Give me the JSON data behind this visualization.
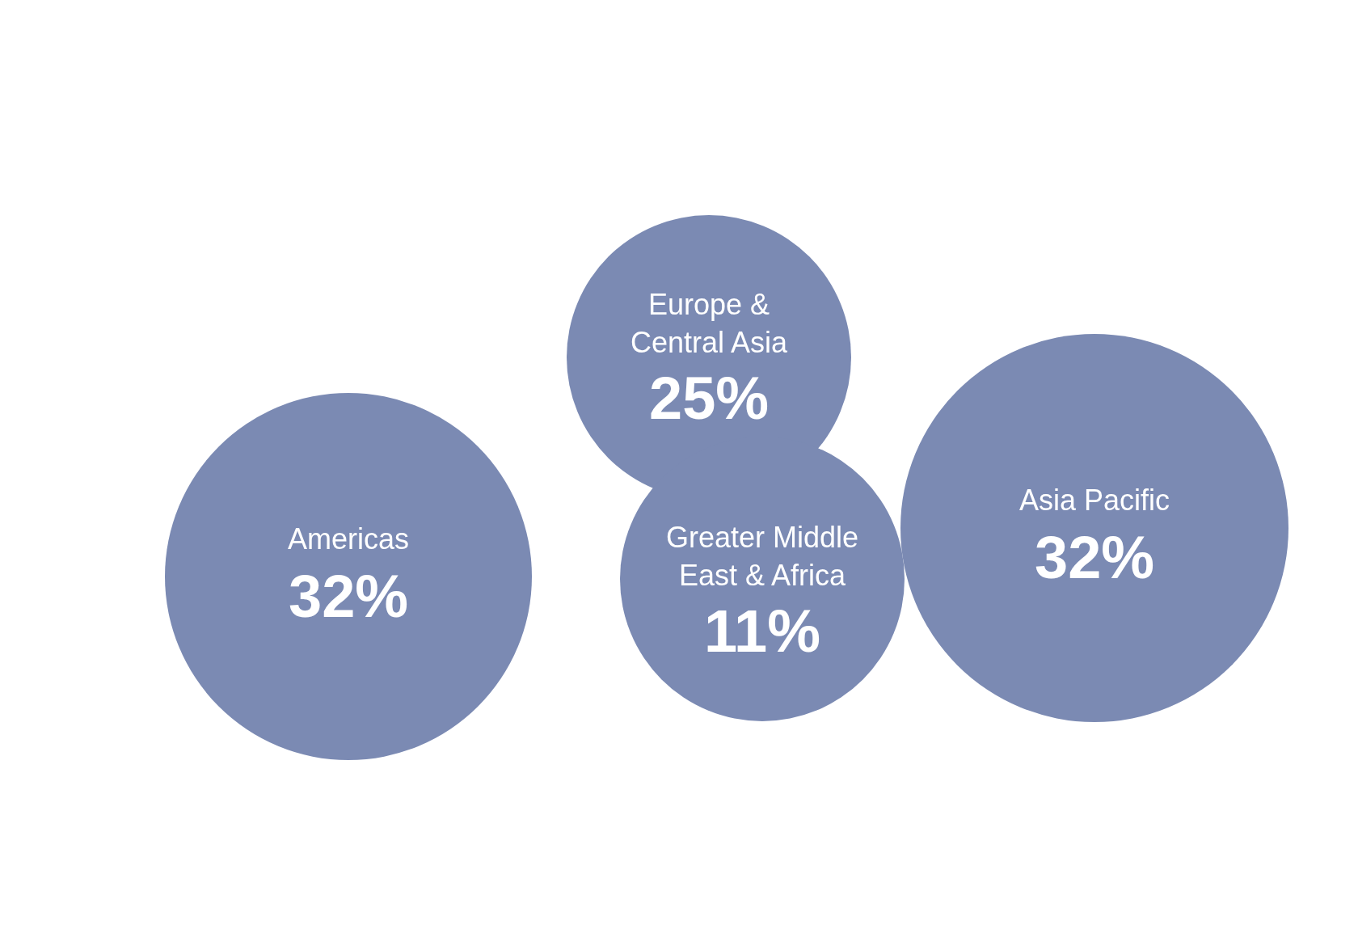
{
  "chart_data": {
    "type": "other",
    "categories": [
      "Americas",
      "Europe & Central Asia",
      "Greater Middle East & Africa",
      "Asia Pacific"
    ],
    "values": [
      32,
      25,
      11,
      32
    ],
    "value_labels": [
      "32%",
      "25%",
      "11%",
      "32%"
    ],
    "color": "#7b8ab3"
  }
}
